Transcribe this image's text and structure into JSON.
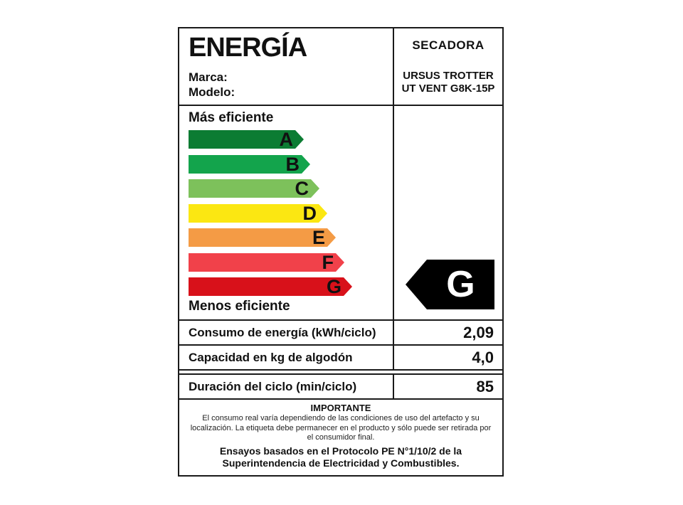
{
  "label": {
    "title": "ENERGÍA",
    "brand_label": "Marca:",
    "model_label": "Modelo:",
    "appliance_type": "SECADORA",
    "brand_value": "URSUS TROTTER",
    "model_value": "UT VENT G8K-15P"
  },
  "scale": {
    "top_caption": "Más eficiente",
    "bottom_caption": "Menos eficiente",
    "bars": [
      {
        "letter": "A",
        "color": "#0c7c33",
        "body_width": 150
      },
      {
        "letter": "B",
        "color": "#13a44c",
        "body_width": 159
      },
      {
        "letter": "C",
        "color": "#7dc15b",
        "body_width": 172
      },
      {
        "letter": "D",
        "color": "#fbe712",
        "body_width": 183
      },
      {
        "letter": "E",
        "color": "#f49b45",
        "body_width": 195
      },
      {
        "letter": "F",
        "color": "#f1414a",
        "body_width": 207
      },
      {
        "letter": "G",
        "color": "#d8111a",
        "body_width": 218
      }
    ],
    "rating": {
      "letter": "G",
      "arrow_color": "#000000",
      "letter_color": "#ffffff"
    }
  },
  "rows": [
    {
      "label": "Consumo de energía (kWh/ciclo)",
      "value": "2,09"
    },
    {
      "label": "Capacidad en kg de algodón",
      "value": "4,0"
    },
    {
      "label": "Duración del ciclo (min/ciclo)",
      "value": "85"
    }
  ],
  "footer": {
    "heading": "IMPORTANTE",
    "body_lines": [
      "El consumo real varía dependiendo de las condiciones de uso del artefacto y su",
      "localización. La etiqueta debe permanecer en el producto y sólo puede ser retirada por",
      "el consumidor final."
    ],
    "bold_lines": [
      "Ensayos basados en el Protocolo PE N°1/10/2 de la",
      "Superintendencia de Electricidad y Combustibles."
    ]
  },
  "colors": {
    "border": "#1a1a1a",
    "background": "#ffffff"
  }
}
